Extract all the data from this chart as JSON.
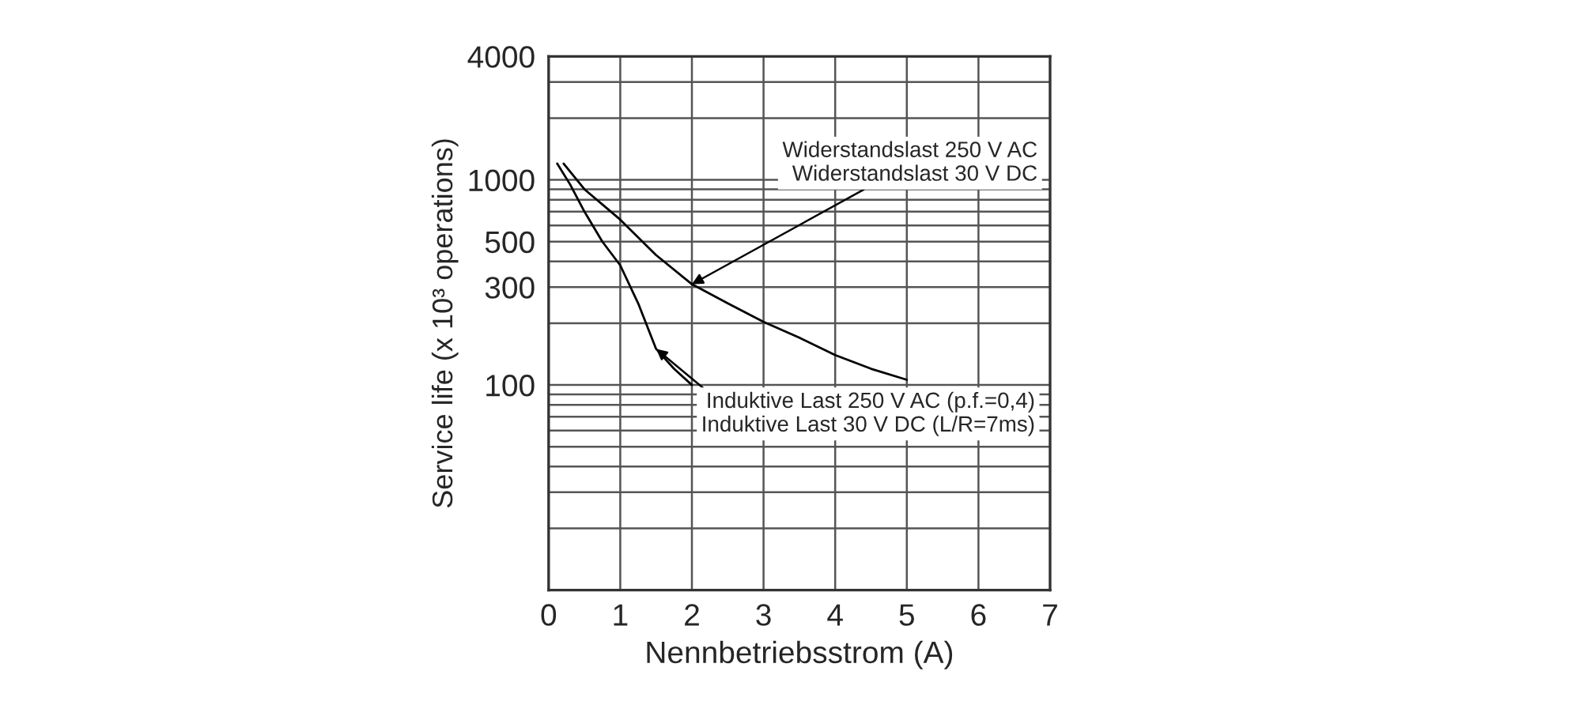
{
  "chart_data": {
    "type": "line",
    "xlabel": "Nennbetriebsstrom (A)",
    "ylabel": "Service life (x 10³ operations)",
    "series": [
      {
        "color": "#000000",
        "x": [
          0.21,
          0.5,
          1,
          1.5,
          2,
          2.5,
          3,
          3.5,
          4,
          4.5,
          5
        ],
        "values": [
          1200,
          900,
          640,
          430,
          310,
          250,
          203,
          170,
          140,
          120,
          106
        ]
      },
      {
        "color": "#000000",
        "x": [
          0.12,
          0.3,
          0.5,
          0.75,
          1,
          1.25,
          1.5,
          1.75,
          2
        ],
        "values": [
          1200,
          950,
          700,
          500,
          383,
          250,
          150,
          120,
          100
        ]
      }
    ],
    "annotations": [
      {
        "text": "Widerstandslast 250 V AC\nWiderstandslast 30 V DC",
        "x": 2,
        "y": 310
      },
      {
        "text": "Induktive Last 250 V AC (p.f.=0,4)\nInduktive Last 30 V DC (L/R=7ms)",
        "x": 1.5,
        "y": 150
      }
    ],
    "log": "y",
    "xlim": [
      0,
      7
    ],
    "xticks": [
      0,
      1,
      2,
      3,
      4,
      5,
      6,
      7
    ],
    "ylim": [
      10,
      4000
    ],
    "yticks": [
      {
        "value": 20,
        "label": null
      },
      {
        "value": 30,
        "label": null
      },
      {
        "value": 40,
        "label": null
      },
      {
        "value": 50,
        "label": null
      },
      {
        "value": 60,
        "label": null
      },
      {
        "value": 70,
        "label": null
      },
      {
        "value": 80,
        "label": null
      },
      {
        "value": 90,
        "label": null
      },
      100,
      {
        "value": 200,
        "label": null
      },
      300,
      {
        "value": 400,
        "label": null
      },
      500,
      {
        "value": 600,
        "label": null
      },
      {
        "value": 700,
        "label": null
      },
      {
        "value": 800,
        "label": null
      },
      {
        "value": 900,
        "label": null
      },
      1000,
      {
        "value": 2000,
        "label": null
      },
      {
        "value": 3000,
        "label": null
      },
      4000
    ],
    "grid": true,
    "legend": false,
    "marker": "none",
    "line_style": "solid"
  }
}
